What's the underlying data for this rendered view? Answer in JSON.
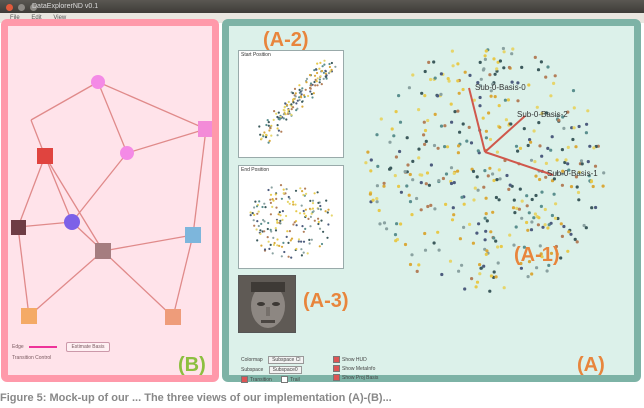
{
  "window": {
    "title": "DataExplorerND v0.1",
    "dot_colors": [
      "#e15a3c",
      "#8d8a85",
      "#8d8a85"
    ]
  },
  "menu": {
    "items": [
      "File",
      "Edit",
      "View"
    ]
  },
  "panel_b": {
    "label": "(B)",
    "edge_label": "Edge",
    "estimate_button": "Estimate Basis",
    "transition_label": "Transition Control",
    "nodes": [
      {
        "id": "n1",
        "shape": "circle",
        "color": "#f48ae6"
      },
      {
        "id": "n2",
        "shape": "square",
        "color": "#f38bd8"
      },
      {
        "id": "n3",
        "shape": "circle",
        "color": "#f48ae6"
      },
      {
        "id": "n4",
        "shape": "square",
        "color": "#e0443f"
      },
      {
        "id": "n5",
        "shape": "square",
        "color": "#6e3d45"
      },
      {
        "id": "n6",
        "shape": "circle",
        "color": "#7c61e8"
      },
      {
        "id": "n7",
        "shape": "square",
        "color": "#a57d80"
      },
      {
        "id": "n8",
        "shape": "square",
        "color": "#7db6dc"
      },
      {
        "id": "n9",
        "shape": "square",
        "color": "#f4aa66"
      },
      {
        "id": "n10",
        "shape": "square",
        "color": "#ee9c7a"
      }
    ]
  },
  "panel_a": {
    "label": "(A)",
    "label_a1": "(A-1)",
    "label_a2": "(A-2)",
    "label_a3": "(A-3)",
    "start_caption": "Start Position",
    "end_caption": "End Position",
    "axis_labels": [
      "Sub-0-Basis-0",
      "Sub-0-Basis-2",
      "Sub-0-Basis-1"
    ],
    "axis_color": "#d0584c",
    "point_colors": [
      "#e6d56a",
      "#3c5a5c",
      "#d9a93a",
      "#5a8f8e",
      "#8aa2a1",
      "#e7c94a",
      "#b37f5a",
      "#4d5c7e"
    ],
    "controls": {
      "colormap_label": "Colormap",
      "colormap_value": "Subspace Cl",
      "subspace_label": "Subspace",
      "subspace_value": "Subspace0",
      "transition_label": "Transition",
      "trail_label": "Trail",
      "show_hud": "Show HUD",
      "show_metainfo": "Show MetaInfo",
      "show_proj_basis": "Show Proj Basis"
    }
  },
  "caption": {
    "text": "Figure 5: Mock-up of our ... The three views of our implementation (A)-(B)..."
  }
}
